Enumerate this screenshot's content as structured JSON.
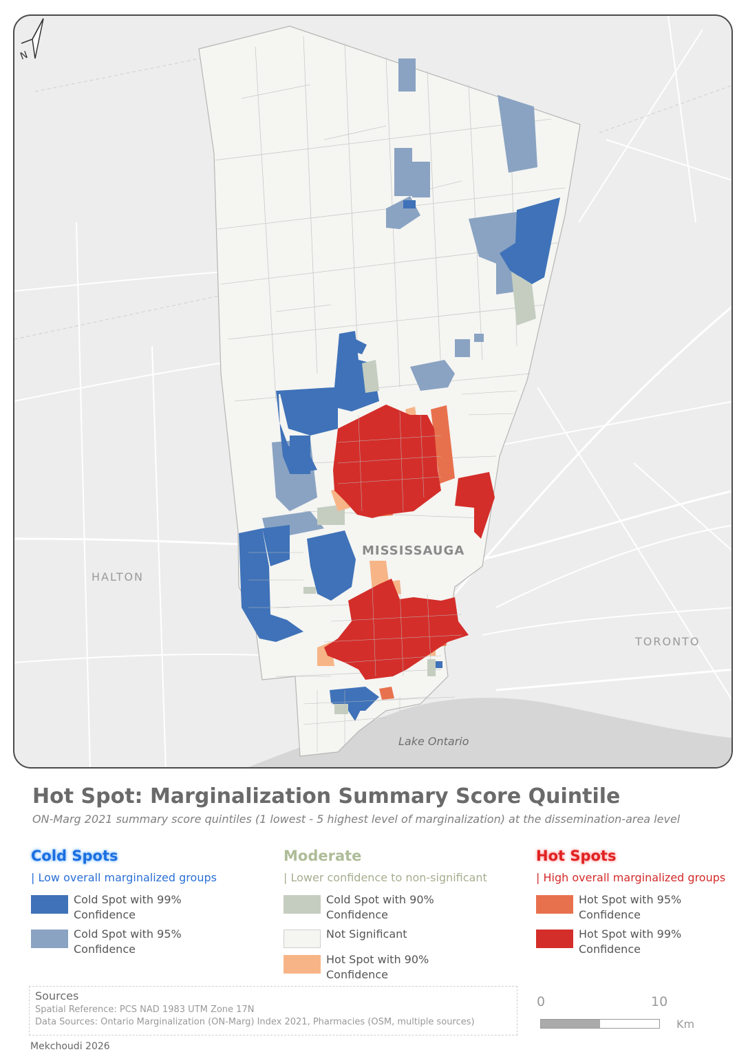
{
  "map": {
    "labels": {
      "halton": "HALTON",
      "toronto": "TORONTO",
      "mississauga": "MISSISSAUGA",
      "lake": "Lake Ontario"
    },
    "north_arrow_label": "N"
  },
  "title": "Hot Spot: Marginalization Summary Score Quintile",
  "subtitle": "ON-Marg 2021 summary score quintiles (1 lowest - 5 highest level of marginalization) at the dissemination-area level",
  "legend": {
    "cold": {
      "heading": "Cold Spots",
      "description": "| Low overall marginalized groups",
      "items": [
        {
          "label": "Cold Spot with 99% Confidence",
          "color": "#3f72b8"
        },
        {
          "label": "Cold Spot with 95% Confidence",
          "color": "#8aa3c2"
        }
      ]
    },
    "moderate": {
      "heading": "Moderate",
      "description": "| Lower confidence to non-significant",
      "items": [
        {
          "label": "Cold Spot with 90% Confidence",
          "color": "#c4cdc0"
        },
        {
          "label": "Not Significant",
          "color": "#f5f5f2"
        },
        {
          "label": "Hot Spot with 90% Confidence",
          "color": "#f7b587"
        }
      ]
    },
    "hot": {
      "heading": "Hot Spots",
      "description": "| High overall marginalized groups",
      "items": [
        {
          "label": "Hot Spot with 95% Confidence",
          "color": "#e8714d"
        },
        {
          "label": "Hot Spot with 99% Confidence",
          "color": "#d42e2a"
        }
      ]
    }
  },
  "sources": {
    "heading": "Sources",
    "spatial_reference": "Spatial Reference: PCS NAD 1983 UTM Zone 17N",
    "data_sources": "Data Sources: Ontario Marginalization (ON-Marg) Index 2021, Pharmacies (OSM, multiple sources)"
  },
  "author": "Mekchoudi 2026",
  "scale_bar": {
    "start": "0",
    "end": "10",
    "unit": "Km"
  }
}
